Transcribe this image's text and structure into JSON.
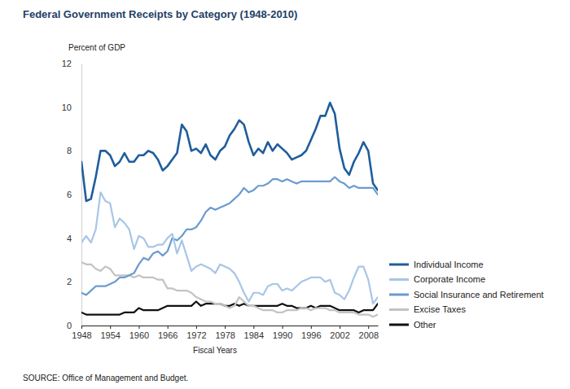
{
  "chart_data": {
    "type": "line",
    "title": "Federal Government Receipts by Category (1948-2010)",
    "ylabel": "Percent of GDP",
    "xlabel": "Fiscal Years",
    "source": "SOURCE: Office of Management and Budget.",
    "x": [
      1948,
      1949,
      1950,
      1951,
      1952,
      1953,
      1954,
      1955,
      1956,
      1957,
      1958,
      1959,
      1960,
      1961,
      1962,
      1963,
      1964,
      1965,
      1966,
      1967,
      1968,
      1969,
      1970,
      1971,
      1972,
      1973,
      1974,
      1975,
      1976,
      1977,
      1978,
      1979,
      1980,
      1981,
      1982,
      1983,
      1984,
      1985,
      1986,
      1987,
      1988,
      1989,
      1990,
      1991,
      1992,
      1993,
      1994,
      1995,
      1996,
      1997,
      1998,
      1999,
      2000,
      2001,
      2002,
      2003,
      2004,
      2005,
      2006,
      2007,
      2008,
      2009,
      2010
    ],
    "xlim": [
      1948,
      2010
    ],
    "xticks": [
      1948,
      1954,
      1960,
      1966,
      1972,
      1978,
      1984,
      1990,
      1996,
      2002,
      2008
    ],
    "ylim": [
      0,
      12
    ],
    "yticks": [
      0,
      2,
      4,
      6,
      8,
      10,
      12
    ],
    "grid": false,
    "legend": "right",
    "series": [
      {
        "name": "Individual Income",
        "color": "#1f5d9c",
        "values": [
          7.5,
          5.7,
          5.8,
          6.8,
          8.0,
          8.0,
          7.8,
          7.3,
          7.5,
          7.9,
          7.5,
          7.5,
          7.8,
          7.8,
          8.0,
          7.9,
          7.6,
          7.1,
          7.3,
          7.6,
          7.9,
          9.2,
          8.9,
          8.0,
          8.1,
          7.9,
          8.3,
          7.8,
          7.6,
          8.0,
          8.2,
          8.7,
          9.0,
          9.4,
          9.2,
          8.4,
          7.8,
          8.1,
          7.9,
          8.4,
          8.0,
          8.3,
          8.1,
          7.9,
          7.6,
          7.7,
          7.8,
          8.0,
          8.5,
          9.0,
          9.6,
          9.6,
          10.2,
          9.7,
          8.1,
          7.2,
          6.9,
          7.5,
          7.9,
          8.4,
          8.0,
          6.5,
          6.2
        ]
      },
      {
        "name": "Corporate Income",
        "color": "#a8c6e6",
        "values": [
          3.8,
          4.1,
          3.8,
          4.4,
          6.1,
          5.7,
          5.6,
          4.5,
          4.9,
          4.7,
          4.4,
          3.5,
          4.1,
          4.0,
          3.6,
          3.6,
          3.7,
          3.7,
          4.0,
          4.2,
          3.3,
          3.9,
          3.2,
          2.5,
          2.7,
          2.8,
          2.7,
          2.6,
          2.4,
          2.8,
          2.7,
          2.6,
          2.4,
          2.0,
          1.5,
          1.1,
          1.5,
          1.5,
          1.4,
          1.8,
          1.9,
          1.9,
          1.6,
          1.7,
          1.6,
          1.8,
          2.0,
          2.1,
          2.2,
          2.2,
          2.2,
          2.0,
          2.1,
          1.5,
          1.4,
          1.2,
          1.6,
          2.2,
          2.7,
          2.7,
          2.1,
          1.0,
          1.3
        ]
      },
      {
        "name": "Social Insurance and Retirement",
        "color": "#6b9bcf",
        "values": [
          1.5,
          1.4,
          1.6,
          1.8,
          1.8,
          1.8,
          1.9,
          2.0,
          2.2,
          2.2,
          2.3,
          2.4,
          2.8,
          3.1,
          3.0,
          3.3,
          3.4,
          3.2,
          3.4,
          4.0,
          3.9,
          4.1,
          4.4,
          4.4,
          4.5,
          4.8,
          5.2,
          5.4,
          5.3,
          5.4,
          5.5,
          5.6,
          5.8,
          6.0,
          6.3,
          6.1,
          6.2,
          6.4,
          6.4,
          6.5,
          6.7,
          6.7,
          6.6,
          6.7,
          6.6,
          6.5,
          6.6,
          6.6,
          6.6,
          6.6,
          6.6,
          6.6,
          6.6,
          6.8,
          6.6,
          6.5,
          6.3,
          6.4,
          6.3,
          6.3,
          6.3,
          6.3,
          6.0
        ]
      },
      {
        "name": "Excise Taxes",
        "color": "#c3c3c3",
        "values": [
          2.9,
          2.8,
          2.8,
          2.6,
          2.5,
          2.7,
          2.6,
          2.3,
          2.3,
          2.3,
          2.3,
          2.2,
          2.3,
          2.2,
          2.2,
          2.2,
          2.1,
          2.1,
          1.7,
          1.7,
          1.6,
          1.6,
          1.6,
          1.5,
          1.3,
          1.2,
          1.1,
          1.1,
          1.0,
          1.0,
          0.9,
          0.8,
          0.9,
          1.3,
          1.1,
          0.9,
          0.9,
          0.8,
          0.7,
          0.7,
          0.7,
          0.6,
          0.6,
          0.7,
          0.7,
          0.7,
          0.8,
          0.8,
          0.7,
          0.8,
          0.8,
          0.8,
          0.7,
          0.7,
          0.6,
          0.6,
          0.6,
          0.6,
          0.5,
          0.5,
          0.5,
          0.4,
          0.5
        ]
      },
      {
        "name": "Other",
        "color": "#111111",
        "values": [
          0.6,
          0.5,
          0.5,
          0.5,
          0.5,
          0.5,
          0.5,
          0.5,
          0.5,
          0.6,
          0.6,
          0.6,
          0.8,
          0.7,
          0.7,
          0.7,
          0.7,
          0.8,
          0.9,
          0.9,
          0.9,
          0.9,
          0.9,
          0.9,
          1.1,
          0.9,
          1.0,
          1.0,
          1.0,
          1.0,
          0.9,
          0.9,
          1.0,
          0.9,
          1.0,
          0.9,
          0.9,
          0.9,
          0.9,
          0.9,
          0.9,
          0.9,
          1.0,
          0.9,
          0.9,
          0.8,
          0.8,
          0.8,
          0.9,
          0.8,
          0.9,
          0.9,
          0.9,
          0.8,
          0.7,
          0.7,
          0.7,
          0.7,
          0.6,
          0.7,
          0.7,
          0.7,
          1.0
        ]
      }
    ]
  }
}
